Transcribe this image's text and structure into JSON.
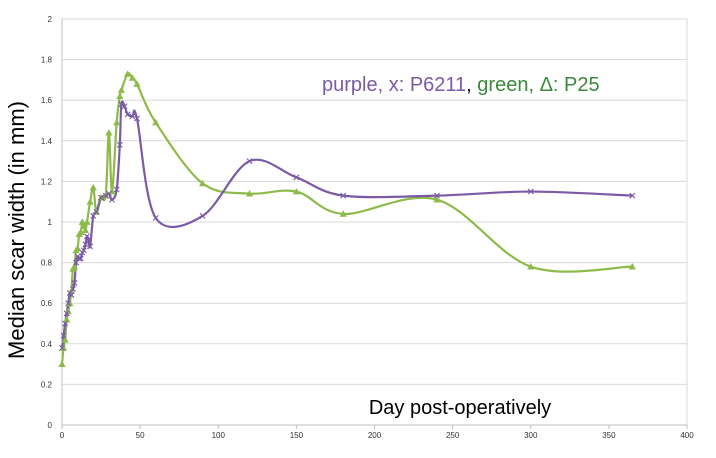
{
  "chart_data": {
    "type": "line",
    "xlabel": "Day  post-operatively",
    "ylabel": "Median scar width (in mm)",
    "xlim": [
      0,
      400
    ],
    "ylim": [
      0,
      2
    ],
    "x_ticks": [
      "0",
      "50",
      "100",
      "150",
      "200",
      "250",
      "300",
      "350",
      "400"
    ],
    "y_ticks": [
      "0",
      "0.2",
      "0.4",
      "0.6",
      "0.8",
      "1",
      "1.2",
      "1.4",
      "1.6",
      "1.8",
      "2"
    ],
    "grid": true,
    "legend_text": {
      "part1": "purple, x: P6211",
      "sep": ", ",
      "part2": "green, Δ: P25"
    },
    "series": [
      {
        "name": "P6211",
        "color": "#7b5aa6",
        "marker": "x",
        "points": [
          [
            0,
            0.38
          ],
          [
            1,
            0.44
          ],
          [
            2,
            0.5
          ],
          [
            3,
            0.55
          ],
          [
            4,
            0.6
          ],
          [
            5,
            0.65
          ],
          [
            6,
            0.64
          ],
          [
            7,
            0.67
          ],
          [
            8,
            0.7
          ],
          [
            9,
            0.8
          ],
          [
            10,
            0.83
          ],
          [
            11,
            0.82
          ],
          [
            12,
            0.82
          ],
          [
            13,
            0.85
          ],
          [
            14,
            0.86
          ],
          [
            15,
            0.89
          ],
          [
            16,
            0.93
          ],
          [
            17,
            0.91
          ],
          [
            18,
            0.88
          ],
          [
            20,
            1.03
          ],
          [
            22,
            1.05
          ],
          [
            25,
            1.12
          ],
          [
            28,
            1.13
          ],
          [
            30,
            1.14
          ],
          [
            32,
            1.11
          ],
          [
            35,
            1.16
          ],
          [
            37,
            1.38
          ],
          [
            38,
            1.58
          ],
          [
            40,
            1.57
          ],
          [
            42,
            1.53
          ],
          [
            45,
            1.52
          ],
          [
            48,
            1.51
          ],
          [
            60,
            1.02
          ],
          [
            90,
            1.03
          ],
          [
            120,
            1.3
          ],
          [
            150,
            1.22
          ],
          [
            180,
            1.13
          ],
          [
            240,
            1.13
          ],
          [
            300,
            1.15
          ],
          [
            365,
            1.13
          ]
        ]
      },
      {
        "name": "P25",
        "color": "#8dbb4a",
        "marker": "triangle",
        "points": [
          [
            0,
            0.3
          ],
          [
            1,
            0.38
          ],
          [
            2,
            0.42
          ],
          [
            3,
            0.52
          ],
          [
            4,
            0.56
          ],
          [
            5,
            0.6
          ],
          [
            6,
            0.66
          ],
          [
            7,
            0.77
          ],
          [
            8,
            0.78
          ],
          [
            9,
            0.86
          ],
          [
            10,
            0.87
          ],
          [
            11,
            0.94
          ],
          [
            12,
            0.95
          ],
          [
            13,
            1.0
          ],
          [
            14,
            0.98
          ],
          [
            15,
            0.96
          ],
          [
            16,
            1.0
          ],
          [
            18,
            1.1
          ],
          [
            20,
            1.17
          ],
          [
            22,
            1.05
          ],
          [
            25,
            1.12
          ],
          [
            28,
            1.13
          ],
          [
            30,
            1.44
          ],
          [
            32,
            1.15
          ],
          [
            35,
            1.49
          ],
          [
            37,
            1.62
          ],
          [
            38,
            1.65
          ],
          [
            42,
            1.73
          ],
          [
            45,
            1.71
          ],
          [
            48,
            1.68
          ],
          [
            60,
            1.49
          ],
          [
            90,
            1.19
          ],
          [
            120,
            1.14
          ],
          [
            150,
            1.15
          ],
          [
            180,
            1.04
          ],
          [
            240,
            1.11
          ],
          [
            300,
            0.78
          ],
          [
            365,
            0.78
          ]
        ]
      }
    ]
  }
}
